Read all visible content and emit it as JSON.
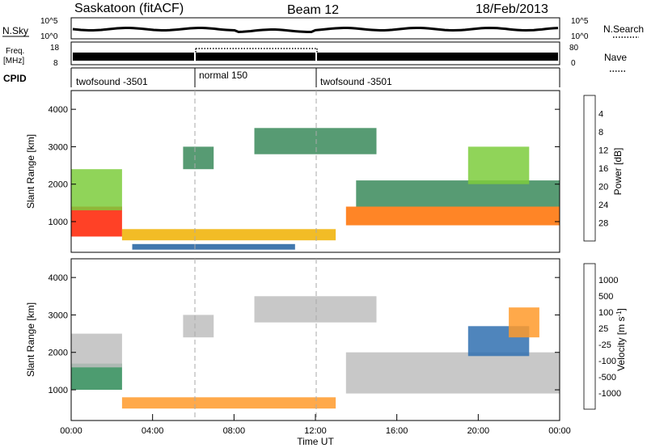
{
  "header": {
    "station": "Saskatoon (fitACF)",
    "beam": "Beam 12",
    "date": "18/Feb/2013"
  },
  "strips": {
    "nsky": {
      "label": "N.Sky",
      "ticks_left": [
        "10^5",
        "10^0"
      ]
    },
    "nsearch": {
      "label": "N.Search",
      "ticks_right": [
        "10^5",
        "10^0"
      ],
      "style": "dotted"
    },
    "freq": {
      "label_line1": "Freq.",
      "label_line2": "[MHz]",
      "ticks_left": [
        "18",
        "8"
      ]
    },
    "nave": {
      "label": "Nave",
      "ticks_right": [
        "80",
        "0"
      ],
      "style": "dotted"
    },
    "cpid": {
      "label": "CPID",
      "segments": [
        {
          "text": "twofsound -3501",
          "start": "00:00",
          "end": "06:00"
        },
        {
          "text": "normal 150",
          "start": "06:00",
          "end": "12:00"
        },
        {
          "text": "twofsound -3501",
          "start": "12:00",
          "end": "24:00"
        }
      ]
    }
  },
  "colors": {
    "power_scale": [
      "#0000ff",
      "#2060a0",
      "#3a8a5a",
      "#7ccd3c",
      "#f0b000",
      "#ff7000",
      "#ff2000",
      "#e00000"
    ],
    "velocity_scale": [
      "#1e3ca0",
      "#3070b0",
      "#2e8b57",
      "#66cc33",
      "#bebebe",
      "#ff9a2a",
      "#ff6a00",
      "#ff2a00",
      "#e00000"
    ]
  },
  "chart_data": [
    {
      "type": "heatmap",
      "panel": "power",
      "ylabel": "Slant Range [km]",
      "yticks": [
        "1000",
        "2000",
        "3000",
        "4000"
      ],
      "ylim": [
        180,
        4500
      ],
      "colorbar_label": "Power [dB]",
      "colorbar_ticks": [
        "4",
        "8",
        "12",
        "16",
        "20",
        "24",
        "28"
      ],
      "colorbar_range": [
        0,
        30
      ],
      "regions": [
        {
          "t0": 0.0,
          "t1": 2.5,
          "r0": 600,
          "r1": 1400,
          "level": 24
        },
        {
          "t0": 0.0,
          "t1": 2.5,
          "r0": 1300,
          "r1": 2400,
          "level": 12
        },
        {
          "t0": 2.5,
          "t1": 13.0,
          "r0": 500,
          "r1": 800,
          "level": 16
        },
        {
          "t0": 3.0,
          "t1": 11.0,
          "r0": 250,
          "r1": 400,
          "level": 4
        },
        {
          "t0": 5.5,
          "t1": 7.0,
          "r0": 2400,
          "r1": 3000,
          "level": 8
        },
        {
          "t0": 9.0,
          "t1": 15.0,
          "r0": 2800,
          "r1": 3500,
          "level": 8
        },
        {
          "t0": 13.5,
          "t1": 24.0,
          "r0": 900,
          "r1": 1400,
          "level": 22
        },
        {
          "t0": 14.0,
          "t1": 24.0,
          "r0": 1400,
          "r1": 2100,
          "level": 10
        },
        {
          "t0": 19.5,
          "t1": 22.5,
          "r0": 2000,
          "r1": 3000,
          "level": 14
        }
      ]
    },
    {
      "type": "heatmap",
      "panel": "velocity",
      "ylabel": "Slant Range [km]",
      "yticks": [
        "1000",
        "2000",
        "3000",
        "4000"
      ],
      "ylim": [
        180,
        4500
      ],
      "colorbar_label": "Velocity [m s",
      "colorbar_label_sup": "-1",
      "colorbar_label_end": "]",
      "colorbar_ticks": [
        "1000",
        "500",
        "100",
        "25",
        "-25",
        "-100",
        "-500",
        "-1000"
      ],
      "xticks": [
        "00:00",
        "04:00",
        "08:00",
        "12:00",
        "16:00",
        "20:00",
        "00:00"
      ],
      "xlabel": "Time UT",
      "regions": [
        {
          "t0": 0.0,
          "t1": 2.5,
          "r0": 1000,
          "r1": 1700,
          "level": 100
        },
        {
          "t0": 0.0,
          "t1": 2.5,
          "r0": 1600,
          "r1": 2500,
          "level": 0
        },
        {
          "t0": 2.5,
          "t1": 13.0,
          "r0": 500,
          "r1": 800,
          "level": -100
        },
        {
          "t0": 5.5,
          "t1": 7.0,
          "r0": 2400,
          "r1": 3000,
          "level": 0
        },
        {
          "t0": 9.0,
          "t1": 15.0,
          "r0": 2800,
          "r1": 3500,
          "level": 0
        },
        {
          "t0": 13.5,
          "t1": 24.0,
          "r0": 900,
          "r1": 2000,
          "level": 0
        },
        {
          "t0": 19.5,
          "t1": 22.5,
          "r0": 1900,
          "r1": 2700,
          "level": 500
        },
        {
          "t0": 21.5,
          "t1": 23.0,
          "r0": 2400,
          "r1": 3200,
          "level": -100
        }
      ]
    }
  ]
}
